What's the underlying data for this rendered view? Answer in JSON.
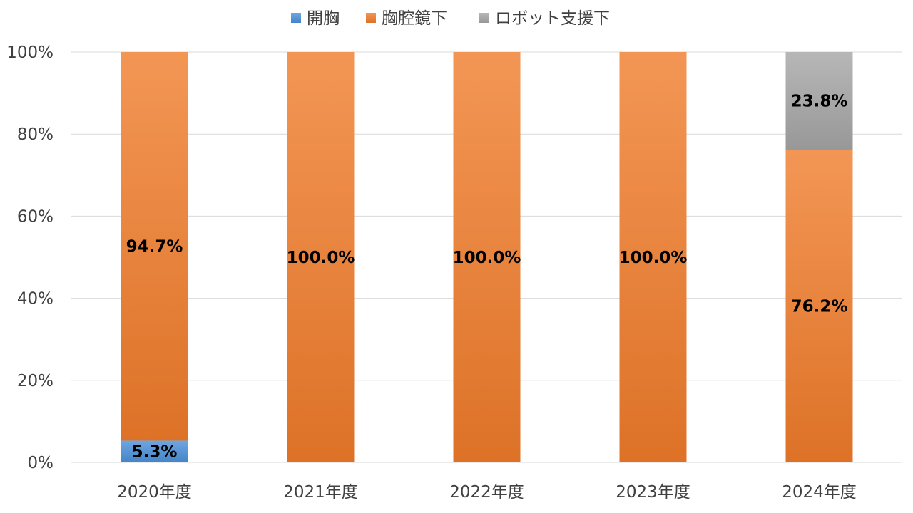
{
  "chart_data": {
    "type": "bar",
    "stacked": true,
    "percent": true,
    "categories": [
      "2020年度",
      "2021年度",
      "2022年度",
      "2023年度",
      "2024年度"
    ],
    "series": [
      {
        "name": "開胸",
        "color": "#4A90D9",
        "values": [
          5.3,
          0,
          0,
          0,
          0
        ],
        "labels": [
          "5.3%",
          "",
          "",
          "",
          ""
        ]
      },
      {
        "name": "胸腔鏡下",
        "color": "#F07C2A",
        "values": [
          94.7,
          100.0,
          100.0,
          100.0,
          76.2
        ],
        "labels": [
          "94.7%",
          "100.0%",
          "100.0%",
          "100.0%",
          "76.2%"
        ]
      },
      {
        "name": "ロボット支援下",
        "color": "#A5A5A5",
        "values": [
          0,
          0,
          0,
          0,
          23.8
        ],
        "labels": [
          "",
          "",
          "",
          "",
          "23.8%"
        ]
      }
    ],
    "ylim": [
      0,
      100
    ],
    "yticks": [
      "0%",
      "20%",
      "40%",
      "60%",
      "80%",
      "100%"
    ],
    "grid": true,
    "legend_position": "top"
  }
}
